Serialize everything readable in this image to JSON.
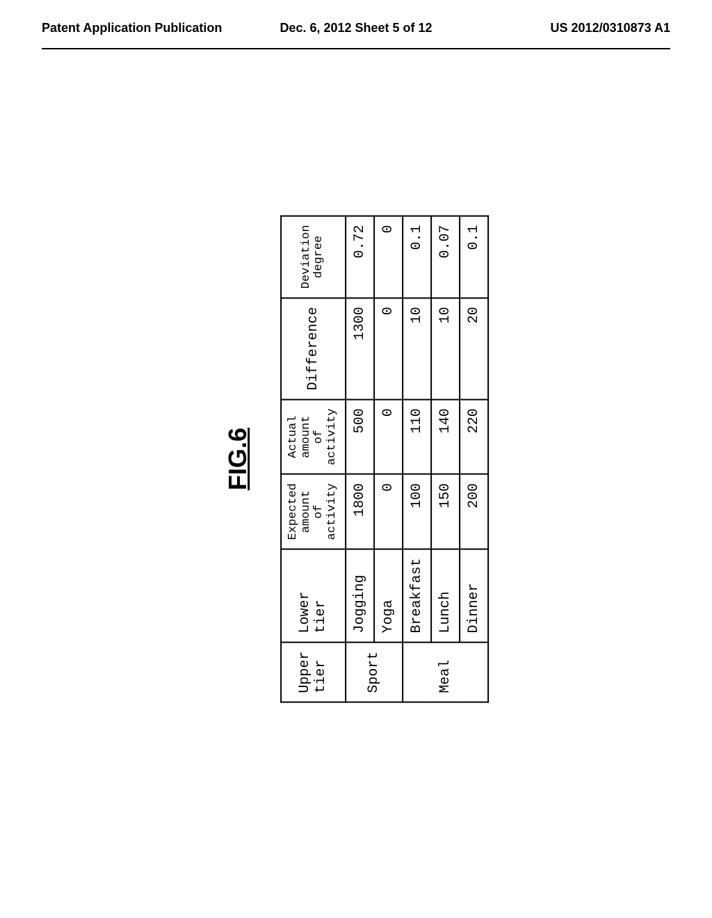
{
  "header": {
    "left": "Patent Application Publication",
    "center": "Dec. 6, 2012  Sheet 5 of 12",
    "right": "US 2012/0310873 A1"
  },
  "figure": {
    "label": "FIG.6",
    "columns": [
      "Upper tier",
      "Lower tier",
      "Expected amount of activity",
      "Actual amount of activity",
      "Difference",
      "Deviation degree"
    ],
    "rows": [
      {
        "upper": "Sport",
        "lower": "Jogging",
        "expected": "1800",
        "actual": "500",
        "difference": "1300",
        "deviation": "0.72",
        "upper_rowspan": 2
      },
      {
        "upper": "",
        "lower": "Yoga",
        "expected": "0",
        "actual": "0",
        "difference": "0",
        "deviation": "0"
      },
      {
        "upper": "Meal",
        "lower": "Breakfast",
        "expected": "100",
        "actual": "110",
        "difference": "10",
        "deviation": "0.1",
        "upper_rowspan": 3
      },
      {
        "upper": "",
        "lower": "Lunch",
        "expected": "150",
        "actual": "140",
        "difference": "10",
        "deviation": "0.07"
      },
      {
        "upper": "",
        "lower": "Dinner",
        "expected": "200",
        "actual": "220",
        "difference": "20",
        "deviation": "0.1"
      }
    ]
  }
}
